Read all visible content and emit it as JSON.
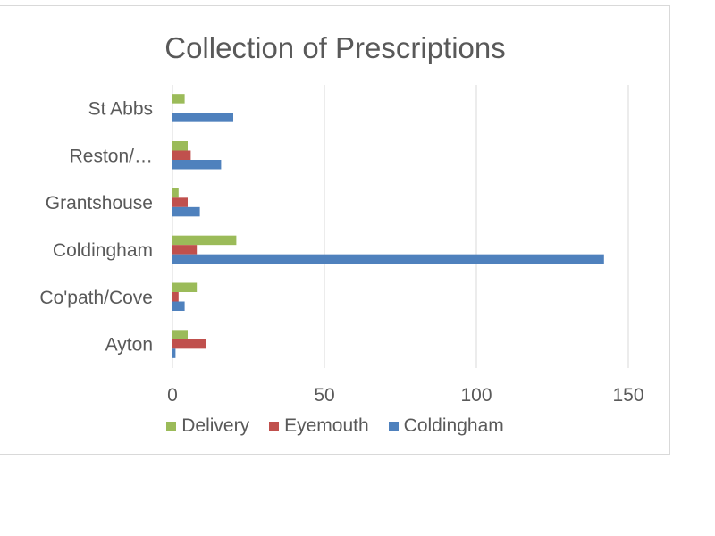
{
  "colors": {
    "Delivery": "#9bbb59",
    "Eyemouth": "#c0504d",
    "Coldingham": "#4f81bd",
    "grid": "#d9d9d9",
    "text": "#595959"
  },
  "chart_data": {
    "type": "bar",
    "orientation": "horizontal",
    "title": "Collection of Prescriptions",
    "xlabel": "",
    "ylabel": "",
    "categories": [
      "St Abbs",
      "Reston/…",
      "Grantshouse",
      "Coldingham",
      "Co'path/Cove",
      "Ayton"
    ],
    "series": [
      {
        "name": "Delivery",
        "values": [
          4,
          5,
          2,
          21,
          8,
          5
        ]
      },
      {
        "name": "Eyemouth",
        "values": [
          0,
          6,
          5,
          8,
          2,
          11
        ]
      },
      {
        "name": "Coldingham",
        "values": [
          20,
          16,
          9,
          142,
          4,
          1
        ]
      }
    ],
    "xlim": [
      0,
      150
    ],
    "xticks": [
      0,
      50,
      100,
      150
    ],
    "grid": true,
    "legend": "bottom"
  }
}
